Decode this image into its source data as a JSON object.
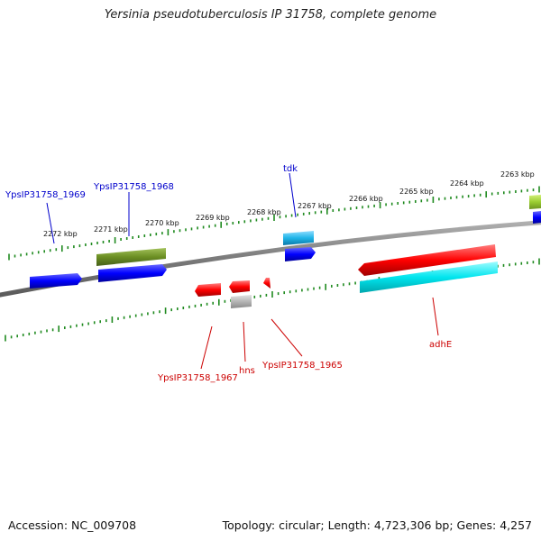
{
  "title": "Yersinia pseudotuberculosis IP 31758, complete genome",
  "footer": {
    "accession": "Accession: NC_009708",
    "summary": "Topology: circular; Length: 4,723,306 bp; Genes: 4,257"
  },
  "colors": {
    "backbone": "#777777",
    "ticks": "#1f8a1f",
    "forward_label": "#0000cc",
    "reverse_label": "#cc0000",
    "red": "#ff0000",
    "blue": "#0000ff",
    "cyan": "#00e5ee",
    "olive": "#6b8e23",
    "lightblue": "#1fb5e8",
    "lime": "#9acd32",
    "gray": "#b5b5b5"
  },
  "scale_labels": [
    "2272 kbp",
    "2271 kbp",
    "2270 kbp",
    "2269 kbp",
    "2268 kbp",
    "2267 kbp",
    "2266 kbp",
    "2265 kbp",
    "2264 kbp",
    "2263 kbp"
  ],
  "gene_labels": [
    {
      "text": "YpsIP31758_1969",
      "strand": "forward"
    },
    {
      "text": "YpsIP31758_1968",
      "strand": "forward"
    },
    {
      "text": "tdk",
      "strand": "forward"
    },
    {
      "text": "YpsIP31758_1967",
      "strand": "reverse"
    },
    {
      "text": "hns",
      "strand": "reverse"
    },
    {
      "text": "YpsIP31758_1965",
      "strand": "reverse"
    },
    {
      "text": "adhE",
      "strand": "reverse"
    }
  ],
  "features": [
    {
      "name": "olive-band",
      "color": "olive"
    },
    {
      "name": "blue-gene-1968",
      "color": "blue"
    },
    {
      "name": "blue-gene-1969",
      "color": "blue"
    },
    {
      "name": "lightblue-band-tdk",
      "color": "lightblue"
    },
    {
      "name": "blue-gene-tdk",
      "color": "blue"
    },
    {
      "name": "lime-band-right",
      "color": "lime"
    },
    {
      "name": "blue-gene-right",
      "color": "blue"
    },
    {
      "name": "red-gene-1967",
      "color": "red"
    },
    {
      "name": "red-gene-hns",
      "color": "red"
    },
    {
      "name": "gray-band-hns",
      "color": "gray"
    },
    {
      "name": "red-gene-1965",
      "color": "red"
    },
    {
      "name": "red-gene-adhe",
      "color": "red"
    },
    {
      "name": "cyan-band-adhe",
      "color": "cyan"
    }
  ]
}
